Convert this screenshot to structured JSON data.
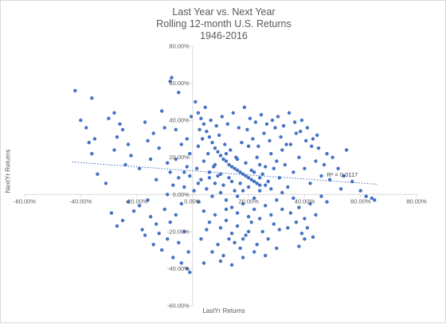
{
  "chart_data": {
    "type": "scatter",
    "title": "Last Year vs. Next Year",
    "subtitle": "Rolling 12-month U.S. Returns",
    "subtitle2": "1946-2016",
    "xlabel": "LastYr Returns",
    "ylabel": "NextYr Returns",
    "xlim": [
      -0.6,
      0.8
    ],
    "ylim": [
      -0.6,
      0.8
    ],
    "x_ticks": [
      "-60.00%",
      "-40.00%",
      "-20.00%",
      "0.00%",
      "20.00%",
      "40.00%",
      "60.00%",
      "80.00%"
    ],
    "y_ticks": [
      "80.00%",
      "60.00%",
      "40.00%",
      "20.00%",
      "0.00%",
      "-20.00%",
      "-40.00%",
      "-60.00%"
    ],
    "grid": false,
    "marker_color": "#4472c4",
    "trendline": {
      "start": [
        -0.43,
        0.175
      ],
      "end": [
        0.66,
        0.055
      ],
      "r2_label": "R² = 0.0117",
      "color": "#4472c4"
    },
    "series": [
      {
        "points": [
          [
            -0.42,
            0.56
          ],
          [
            -0.38,
            0.36
          ],
          [
            -0.37,
            0.28
          ],
          [
            -0.36,
            0.52
          ],
          [
            -0.35,
            0.3
          ],
          [
            -0.34,
            0.11
          ],
          [
            -0.4,
            0.4
          ],
          [
            -0.36,
            0.22
          ],
          [
            -0.3,
            0.41
          ],
          [
            -0.28,
            0.24
          ],
          [
            -0.27,
            0.31
          ],
          [
            -0.26,
            0.38
          ],
          [
            -0.25,
            0.35
          ],
          [
            -0.24,
            0.16
          ],
          [
            -0.23,
            0.27
          ],
          [
            -0.22,
            0.21
          ],
          [
            -0.28,
            0.44
          ],
          [
            -0.19,
            0.14
          ],
          [
            -0.17,
            0.39
          ],
          [
            -0.16,
            0.29
          ],
          [
            -0.15,
            0.19
          ],
          [
            -0.14,
            0.33
          ],
          [
            -0.13,
            0.08
          ],
          [
            -0.12,
            0.25
          ],
          [
            -0.11,
            0.45
          ],
          [
            -0.1,
            0.36
          ],
          [
            -0.09,
            0.17
          ],
          [
            -0.08,
            0.61
          ],
          [
            -0.075,
            0.63
          ],
          [
            -0.06,
            0.35
          ],
          [
            -0.05,
            0.55
          ],
          [
            -0.04,
            0.27
          ],
          [
            -0.03,
            0.12
          ],
          [
            -0.02,
            0.3
          ],
          [
            -0.01,
            0.22
          ],
          [
            -0.005,
            0.42
          ],
          [
            -0.31,
            0.06
          ],
          [
            -0.29,
            -0.1
          ],
          [
            -0.27,
            -0.17
          ],
          [
            -0.25,
            -0.14
          ],
          [
            -0.23,
            -0.04
          ],
          [
            -0.21,
            -0.09
          ],
          [
            -0.19,
            -0.06
          ],
          [
            -0.18,
            -0.19
          ],
          [
            -0.17,
            -0.22
          ],
          [
            -0.16,
            -0.03
          ],
          [
            -0.15,
            -0.12
          ],
          [
            -0.14,
            -0.27
          ],
          [
            -0.13,
            -0.16
          ],
          [
            -0.12,
            -0.21
          ],
          [
            -0.11,
            -0.3
          ],
          [
            -0.1,
            -0.08
          ],
          [
            -0.09,
            -0.24
          ],
          [
            -0.08,
            -0.15
          ],
          [
            -0.07,
            -0.34
          ],
          [
            -0.06,
            -0.11
          ],
          [
            -0.05,
            -0.26
          ],
          [
            -0.04,
            -0.37
          ],
          [
            -0.03,
            -0.2
          ],
          [
            -0.02,
            -0.4
          ],
          [
            -0.01,
            -0.42
          ],
          [
            -0.015,
            -0.31
          ],
          [
            -0.04,
            -0.05
          ],
          [
            0.01,
            0.5
          ],
          [
            0.02,
            0.44
          ],
          [
            0.03,
            0.41
          ],
          [
            0.04,
            0.38
          ],
          [
            0.05,
            0.34
          ],
          [
            0.06,
            0.31
          ],
          [
            0.07,
            0.28
          ],
          [
            0.08,
            0.25
          ],
          [
            0.09,
            0.23
          ],
          [
            0.1,
            0.21
          ],
          [
            0.11,
            0.19
          ],
          [
            0.12,
            0.18
          ],
          [
            0.13,
            0.16
          ],
          [
            0.14,
            0.15
          ],
          [
            0.15,
            0.14
          ],
          [
            0.16,
            0.13
          ],
          [
            0.17,
            0.12
          ],
          [
            0.18,
            0.11
          ],
          [
            0.19,
            0.1
          ],
          [
            0.2,
            0.09
          ],
          [
            0.21,
            0.08
          ],
          [
            0.22,
            0.07
          ],
          [
            0.23,
            0.06
          ],
          [
            0.24,
            0.05
          ],
          [
            0.02,
            0.26
          ],
          [
            0.04,
            0.18
          ],
          [
            0.06,
            0.12
          ],
          [
            0.08,
            0.06
          ],
          [
            0.1,
            0.01
          ],
          [
            0.12,
            -0.03
          ],
          [
            0.14,
            -0.07
          ],
          [
            0.16,
            -0.1
          ],
          [
            0.18,
            -0.05
          ],
          [
            0.2,
            -0.12
          ],
          [
            0.22,
            -0.02
          ],
          [
            0.24,
            0.02
          ],
          [
            0.26,
            0.15
          ],
          [
            0.28,
            0.22
          ],
          [
            0.3,
            0.18
          ],
          [
            0.32,
            0.24
          ],
          [
            0.03,
            0.08
          ],
          [
            0.05,
            0.03
          ],
          [
            0.07,
            -0.01
          ],
          [
            0.09,
            0.1
          ],
          [
            0.11,
            0.05
          ],
          [
            0.13,
            0.09
          ],
          [
            0.15,
            0.02
          ],
          [
            0.17,
            0.06
          ],
          [
            0.19,
            0.17
          ],
          [
            0.21,
            0.13
          ],
          [
            0.23,
            0.2
          ],
          [
            0.25,
            0.11
          ],
          [
            0.27,
            0.07
          ],
          [
            0.29,
            0.14
          ],
          [
            0.31,
            0.09
          ],
          [
            0.33,
            0.16
          ],
          [
            0.035,
            0.3
          ],
          [
            0.055,
            0.22
          ],
          [
            0.075,
            0.15
          ],
          [
            0.095,
            0.32
          ],
          [
            0.115,
            0.27
          ],
          [
            0.135,
            0.24
          ],
          [
            0.155,
            0.2
          ],
          [
            0.175,
            0.28
          ],
          [
            0.195,
            0.35
          ],
          [
            0.215,
            0.3
          ],
          [
            0.235,
            0.26
          ],
          [
            0.255,
            0.33
          ],
          [
            0.275,
            0.29
          ],
          [
            0.295,
            0.36
          ],
          [
            0.315,
            0.31
          ],
          [
            0.335,
            0.27
          ],
          [
            0.02,
            -0.04
          ],
          [
            0.04,
            -0.09
          ],
          [
            0.06,
            -0.15
          ],
          [
            0.08,
            -0.11
          ],
          [
            0.1,
            -0.18
          ],
          [
            0.12,
            -0.14
          ],
          [
            0.14,
            -0.21
          ],
          [
            0.16,
            -0.17
          ],
          [
            0.18,
            -0.24
          ],
          [
            0.2,
            -0.2
          ],
          [
            0.22,
            -0.08
          ],
          [
            0.24,
            -0.13
          ],
          [
            0.26,
            -0.06
          ],
          [
            0.28,
            -0.11
          ],
          [
            0.3,
            -0.03
          ],
          [
            0.32,
            -0.08
          ],
          [
            0.03,
            -0.24
          ],
          [
            0.05,
            -0.19
          ],
          [
            0.09,
            -0.27
          ],
          [
            0.13,
            -0.24
          ],
          [
            0.17,
            -0.29
          ],
          [
            0.21,
            -0.15
          ],
          [
            0.25,
            -0.2
          ],
          [
            0.29,
            -0.16
          ],
          [
            0.04,
            -0.37
          ],
          [
            0.07,
            -0.31
          ],
          [
            0.11,
            -0.33
          ],
          [
            0.15,
            -0.26
          ],
          [
            0.19,
            -0.22
          ],
          [
            0.23,
            -0.27
          ],
          [
            0.27,
            -0.24
          ],
          [
            0.31,
            -0.19
          ],
          [
            0.34,
            0.04
          ],
          [
            0.36,
            0.12
          ],
          [
            0.38,
            0.2
          ],
          [
            0.4,
            0.14
          ],
          [
            0.42,
            0.06
          ],
          [
            0.44,
            0.18
          ],
          [
            0.46,
            0.1
          ],
          [
            0.48,
            0.22
          ],
          [
            0.35,
            0.27
          ],
          [
            0.37,
            0.33
          ],
          [
            0.39,
            0.4
          ],
          [
            0.41,
            0.36
          ],
          [
            0.43,
            0.3
          ],
          [
            0.45,
            0.25
          ],
          [
            0.47,
            0.16
          ],
          [
            0.49,
            0.08
          ],
          [
            0.36,
            -0.02
          ],
          [
            0.38,
            -0.07
          ],
          [
            0.4,
            -0.13
          ],
          [
            0.42,
            -0.05
          ],
          [
            0.44,
            -0.11
          ],
          [
            0.46,
            -0.01
          ],
          [
            0.48,
            -0.04
          ],
          [
            0.39,
            -0.21
          ],
          [
            0.41,
            -0.18
          ],
          [
            0.43,
            -0.23
          ],
          [
            0.37,
            -0.15
          ],
          [
            0.35,
            -0.1
          ],
          [
            0.34,
            -0.18
          ],
          [
            0.38,
            -0.28
          ],
          [
            0.4,
            -0.24
          ],
          [
            0.5,
            0.2
          ],
          [
            0.52,
            0.14
          ],
          [
            0.54,
            0.1
          ],
          [
            0.55,
            0.24
          ],
          [
            0.57,
            0.07
          ],
          [
            0.6,
            0.02
          ],
          [
            0.62,
            -0.01
          ],
          [
            0.64,
            -0.02
          ],
          [
            0.65,
            -0.03
          ],
          [
            0.53,
            0.03
          ],
          [
            -0.07,
            0.05
          ],
          [
            -0.08,
            0.12
          ],
          [
            -0.06,
            0.19
          ],
          [
            -0.05,
            0.09
          ],
          [
            -0.03,
            0.04
          ],
          [
            -0.02,
            0.15
          ],
          [
            -0.01,
            0.1
          ],
          [
            -0.09,
            0.0
          ],
          [
            0.005,
            0.02
          ],
          [
            0.015,
            0.14
          ],
          [
            0.025,
            0.35
          ],
          [
            0.045,
            0.47
          ],
          [
            0.065,
            0.4
          ],
          [
            0.085,
            0.37
          ],
          [
            0.105,
            0.42
          ],
          [
            0.125,
            0.38
          ],
          [
            0.145,
            0.44
          ],
          [
            0.165,
            0.36
          ],
          [
            0.185,
            0.47
          ],
          [
            0.205,
            0.41
          ],
          [
            0.225,
            0.39
          ],
          [
            0.245,
            0.43
          ],
          [
            0.265,
            0.38
          ],
          [
            0.285,
            0.4
          ],
          [
            0.305,
            0.42
          ],
          [
            0.325,
            0.37
          ],
          [
            0.345,
            0.44
          ],
          [
            0.365,
            0.39
          ],
          [
            0.385,
            0.34
          ],
          [
            0.405,
            0.29
          ],
          [
            0.425,
            0.26
          ],
          [
            0.445,
            0.32
          ],
          [
            0.1,
            -0.36
          ],
          [
            0.14,
            -0.38
          ],
          [
            0.18,
            -0.34
          ],
          [
            0.22,
            -0.31
          ],
          [
            0.26,
            -0.33
          ],
          [
            0.3,
            -0.29
          ],
          [
            0.12,
            -0.08
          ],
          [
            0.16,
            -0.01
          ],
          [
            0.2,
            0.04
          ],
          [
            0.24,
            0.09
          ],
          [
            0.28,
            0.03
          ],
          [
            0.32,
            0.01
          ],
          [
            0.18,
            0.02
          ],
          [
            0.22,
            0.12
          ],
          [
            0.26,
            0.05
          ],
          [
            0.14,
            0.07
          ],
          [
            0.1,
            0.11
          ],
          [
            0.06,
            0.09
          ],
          [
            0.02,
            0.06
          ],
          [
            0.08,
            0.16
          ],
          [
            0.12,
            0.22
          ],
          [
            0.16,
            0.19
          ],
          [
            0.2,
            0.26
          ],
          [
            0.24,
            0.16
          ]
        ]
      }
    ]
  }
}
